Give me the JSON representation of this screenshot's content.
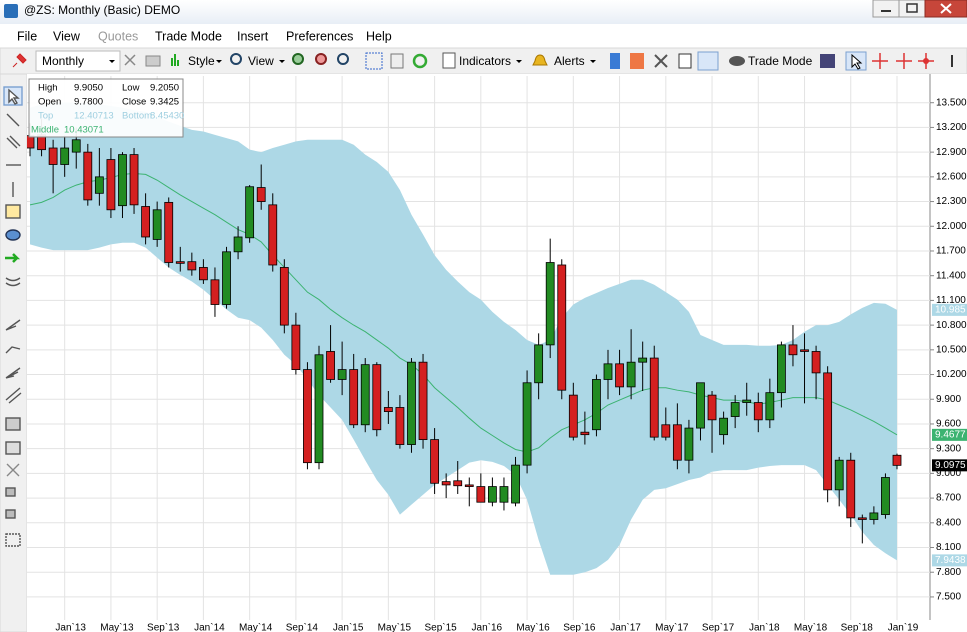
{
  "window": {
    "title": "@ZS: Monthly (Basic) DEMO"
  },
  "menu": [
    "File",
    "View",
    "Quotes",
    "Trade Mode",
    "Insert",
    "Preferences",
    "Help"
  ],
  "toolbar": {
    "interval": "Monthly",
    "style": "Style",
    "view": "View",
    "indicators": "Indicators",
    "alerts": "Alerts",
    "trade_mode": "Trade Mode"
  },
  "info_box": {
    "rows": [
      [
        "High",
        "9.9050",
        "Low",
        "9.2050"
      ],
      [
        "Open",
        "9.7800",
        "Close",
        "9.3425"
      ],
      [
        "Top",
        "12.40713",
        "Bottom",
        "8.45430"
      ],
      [
        "Middle",
        "10.43071"
      ]
    ]
  },
  "chart_data": {
    "type": "candlestick",
    "categories": [
      null,
      null,
      null,
      "Jan`13",
      null,
      null,
      null,
      "May`13",
      null,
      null,
      null,
      "Sep`13",
      null,
      null,
      null,
      "Jan`14",
      null,
      null,
      null,
      "May`14",
      null,
      null,
      null,
      "Sep`14",
      null,
      null,
      null,
      "Jan`15",
      null,
      null,
      null,
      "May`15",
      null,
      null,
      null,
      "Sep`15",
      null,
      null,
      null,
      "Jan`16",
      null,
      null,
      null,
      "May`16",
      null,
      null,
      null,
      "Sep`16",
      null,
      null,
      null,
      "Jan`17",
      null,
      null,
      null,
      "May`17",
      null,
      null,
      null,
      "Sep`17",
      null,
      null,
      null,
      "Jan`18",
      null,
      null,
      null,
      "May`18",
      null,
      null,
      null,
      "Sep`18",
      null,
      null,
      null,
      "Jan`19"
    ],
    "open": [
      13.1,
      13.11,
      12.95,
      12.75,
      12.9,
      12.9,
      12.4,
      12.81,
      12.25,
      12.87,
      12.24,
      11.84,
      12.29,
      11.57,
      11.57,
      11.5,
      11.35,
      11.05,
      11.69,
      11.86,
      12.47,
      12.26,
      11.5,
      10.8,
      10.26,
      9.13,
      10.48,
      10.14,
      10.26,
      9.59,
      10.32,
      9.8,
      9.8,
      9.35,
      10.35,
      9.41,
      8.9,
      8.91,
      8.86,
      8.84,
      8.65,
      8.65,
      8.64,
      9.1,
      10.1,
      10.56,
      11.53,
      9.95,
      9.5,
      9.53,
      10.14,
      10.33,
      10.05,
      10.35,
      10.4,
      9.59,
      9.59,
      9.16,
      9.55,
      9.95,
      9.47,
      9.69,
      9.86,
      9.86,
      9.65,
      9.98,
      10.56,
      10.5,
      10.48,
      10.22,
      8.8,
      9.16,
      8.46,
      8.44,
      8.5,
      9.22
    ],
    "high": [
      13.25,
      13.3,
      13.05,
      13.1,
      13.2,
      13.0,
      12.95,
      12.95,
      12.9,
      12.95,
      12.4,
      12.3,
      12.35,
      11.75,
      11.68,
      11.6,
      11.5,
      11.75,
      12.0,
      12.5,
      12.75,
      12.4,
      11.6,
      10.95,
      10.35,
      10.55,
      10.8,
      10.6,
      10.45,
      10.4,
      10.35,
      10.0,
      9.95,
      10.4,
      10.45,
      9.55,
      9.0,
      9.15,
      8.95,
      9.0,
      8.95,
      8.95,
      9.2,
      10.25,
      10.7,
      11.85,
      11.6,
      10.1,
      9.75,
      10.2,
      10.5,
      10.5,
      10.75,
      10.6,
      10.55,
      9.8,
      9.85,
      9.65,
      10.1,
      10.0,
      9.75,
      9.95,
      10.1,
      9.98,
      10.15,
      10.6,
      10.8,
      10.7,
      10.55,
      10.3,
      9.2,
      9.25,
      8.5,
      8.6,
      9.0,
      9.24
    ],
    "low": [
      12.85,
      12.85,
      12.4,
      12.6,
      12.7,
      12.25,
      12.25,
      12.1,
      12.1,
      12.15,
      11.78,
      11.75,
      11.5,
      11.45,
      11.4,
      11.3,
      10.9,
      11.0,
      11.6,
      11.8,
      12.2,
      11.45,
      10.7,
      10.2,
      9.05,
      9.05,
      10.1,
      9.95,
      9.55,
      9.5,
      9.45,
      9.6,
      9.3,
      9.25,
      9.3,
      8.75,
      8.7,
      8.75,
      8.6,
      8.65,
      8.6,
      8.55,
      8.6,
      9.0,
      9.9,
      10.4,
      9.9,
      9.4,
      9.35,
      9.45,
      9.9,
      9.95,
      9.9,
      10.0,
      9.4,
      9.4,
      9.05,
      9.0,
      9.4,
      9.25,
      9.35,
      9.55,
      9.7,
      9.5,
      9.55,
      9.8,
      10.3,
      9.85,
      9.9,
      8.65,
      8.6,
      8.35,
      8.15,
      8.38,
      8.45,
      9.05
    ],
    "close": [
      12.95,
      12.93,
      12.75,
      12.95,
      13.05,
      12.32,
      12.6,
      12.2,
      12.87,
      12.26,
      11.87,
      12.2,
      11.56,
      11.55,
      11.47,
      11.35,
      11.05,
      11.69,
      11.87,
      12.48,
      12.3,
      11.53,
      10.8,
      10.26,
      9.13,
      10.44,
      10.14,
      10.26,
      9.59,
      10.32,
      9.53,
      9.75,
      9.35,
      10.35,
      9.41,
      8.88,
      8.86,
      8.85,
      8.84,
      8.65,
      8.84,
      8.84,
      9.1,
      10.1,
      10.56,
      11.56,
      10.01,
      9.44,
      9.47,
      10.14,
      10.33,
      10.05,
      10.35,
      10.4,
      9.44,
      9.44,
      9.16,
      9.55,
      10.1,
      9.65,
      9.67,
      9.86,
      9.89,
      9.65,
      9.98,
      10.56,
      10.44,
      10.48,
      10.22,
      8.8,
      9.16,
      8.46,
      8.44,
      8.52,
      8.95,
      9.0975
    ],
    "up_color": "#228b22",
    "down_color": "#d42020",
    "bollinger": {
      "upper": [
        13.44,
        13.48,
        13.5,
        13.5,
        13.5,
        13.49,
        13.48,
        13.46,
        13.44,
        13.41,
        13.39,
        13.33,
        13.27,
        13.22,
        13.17,
        13.15,
        13.11,
        13.07,
        13.03,
        12.93,
        12.9,
        12.95,
        12.99,
        13.03,
        13.05,
        13.05,
        13.05,
        13.05,
        12.99,
        12.87,
        12.78,
        12.66,
        12.44,
        12.14,
        11.9,
        11.65,
        11.47,
        11.33,
        11.2,
        11.11,
        10.96,
        10.84,
        10.74,
        10.62,
        10.56,
        10.62,
        10.89,
        11.05,
        11.13,
        11.19,
        11.25,
        11.3,
        11.35,
        11.35,
        11.29,
        11.2,
        11.11,
        10.96,
        10.68,
        10.62,
        10.56,
        10.56,
        10.56,
        10.55,
        10.55,
        10.56,
        10.62,
        10.72,
        10.8,
        10.8,
        10.84,
        10.93,
        11.01,
        11.07,
        11.06,
        10.985
      ],
      "middle": [
        12.26,
        12.29,
        12.35,
        12.44,
        12.5,
        12.54,
        12.56,
        12.59,
        12.63,
        12.64,
        12.63,
        12.56,
        12.47,
        12.38,
        12.3,
        12.22,
        12.14,
        12.05,
        11.96,
        11.9,
        11.81,
        11.65,
        11.5,
        11.35,
        11.2,
        11.11,
        10.99,
        10.89,
        10.8,
        10.72,
        10.62,
        10.52,
        10.4,
        10.32,
        10.2,
        10.04,
        9.92,
        9.8,
        9.67,
        9.55,
        9.46,
        9.37,
        9.29,
        9.26,
        9.31,
        9.43,
        9.53,
        9.59,
        9.65,
        9.73,
        9.83,
        9.89,
        9.95,
        10.01,
        10.04,
        10.04,
        10.01,
        9.99,
        9.95,
        9.92,
        9.89,
        9.89,
        9.87,
        9.84,
        9.86,
        9.89,
        9.92,
        9.92,
        9.92,
        9.89,
        9.83,
        9.77,
        9.7,
        9.63,
        9.55,
        9.4677
      ],
      "lower": [
        11.78,
        11.74,
        11.71,
        11.71,
        11.71,
        11.71,
        11.74,
        11.78,
        11.8,
        11.8,
        11.74,
        11.62,
        11.5,
        11.41,
        11.33,
        11.23,
        11.11,
        10.99,
        10.89,
        10.86,
        10.77,
        10.62,
        10.44,
        10.32,
        10.14,
        9.95,
        9.8,
        9.65,
        9.41,
        9.16,
        8.92,
        8.74,
        8.5,
        8.62,
        8.74,
        8.86,
        8.95,
        9.04,
        9.13,
        9.16,
        9.14,
        9.09,
        8.98,
        8.68,
        8.19,
        7.77,
        7.77,
        7.77,
        7.8,
        7.85,
        7.95,
        8.13,
        8.44,
        8.68,
        8.8,
        8.82,
        8.87,
        8.92,
        8.95,
        9.02,
        9.04,
        9.04,
        9.04,
        9.07,
        9.09,
        9.1,
        9.1,
        9.1,
        9.04,
        8.86,
        8.68,
        8.5,
        8.29,
        8.13,
        8.03,
        7.9438
      ],
      "band_color": "#add8e6",
      "middle_color": "#3cb371"
    },
    "price_labels": [
      {
        "value": 10.985,
        "label": "10.985",
        "color": "#add8e6"
      },
      {
        "value": 9.4677,
        "label": "9.4677",
        "color": "#3cb371"
      },
      {
        "value": 9.0975,
        "label": "9.0975",
        "color": "#000000"
      },
      {
        "value": 7.9438,
        "label": "7.9438",
        "color": "#add8e6"
      }
    ],
    "ylim": [
      7.22,
      13.8
    ],
    "yticks": [
      {
        "value": 7.5,
        "label": "7.500"
      },
      {
        "value": 7.8,
        "label": "7.800"
      },
      {
        "value": 8.1,
        "label": "8.100"
      },
      {
        "value": 8.4,
        "label": "8.400"
      },
      {
        "value": 8.7,
        "label": "8.700"
      },
      {
        "value": 9.0,
        "label": "9.000"
      },
      {
        "value": 9.3,
        "label": "9.300"
      },
      {
        "value": 9.6,
        "label": "9.600"
      },
      {
        "value": 9.9,
        "label": "9.900"
      },
      {
        "value": 10.2,
        "label": "10.200"
      },
      {
        "value": 10.5,
        "label": "10.500"
      },
      {
        "value": 10.8,
        "label": "10.800"
      },
      {
        "value": 11.1,
        "label": "11.100"
      },
      {
        "value": 11.4,
        "label": "11.400"
      },
      {
        "value": 11.7,
        "label": "11.700"
      },
      {
        "value": 12.0,
        "label": "12.000"
      },
      {
        "value": 12.3,
        "label": "12.300"
      },
      {
        "value": 12.6,
        "label": "12.600"
      },
      {
        "value": 12.9,
        "label": "12.900"
      },
      {
        "value": 13.2,
        "label": "13.200"
      },
      {
        "value": 13.5,
        "label": "13.500"
      }
    ],
    "grid": true
  }
}
